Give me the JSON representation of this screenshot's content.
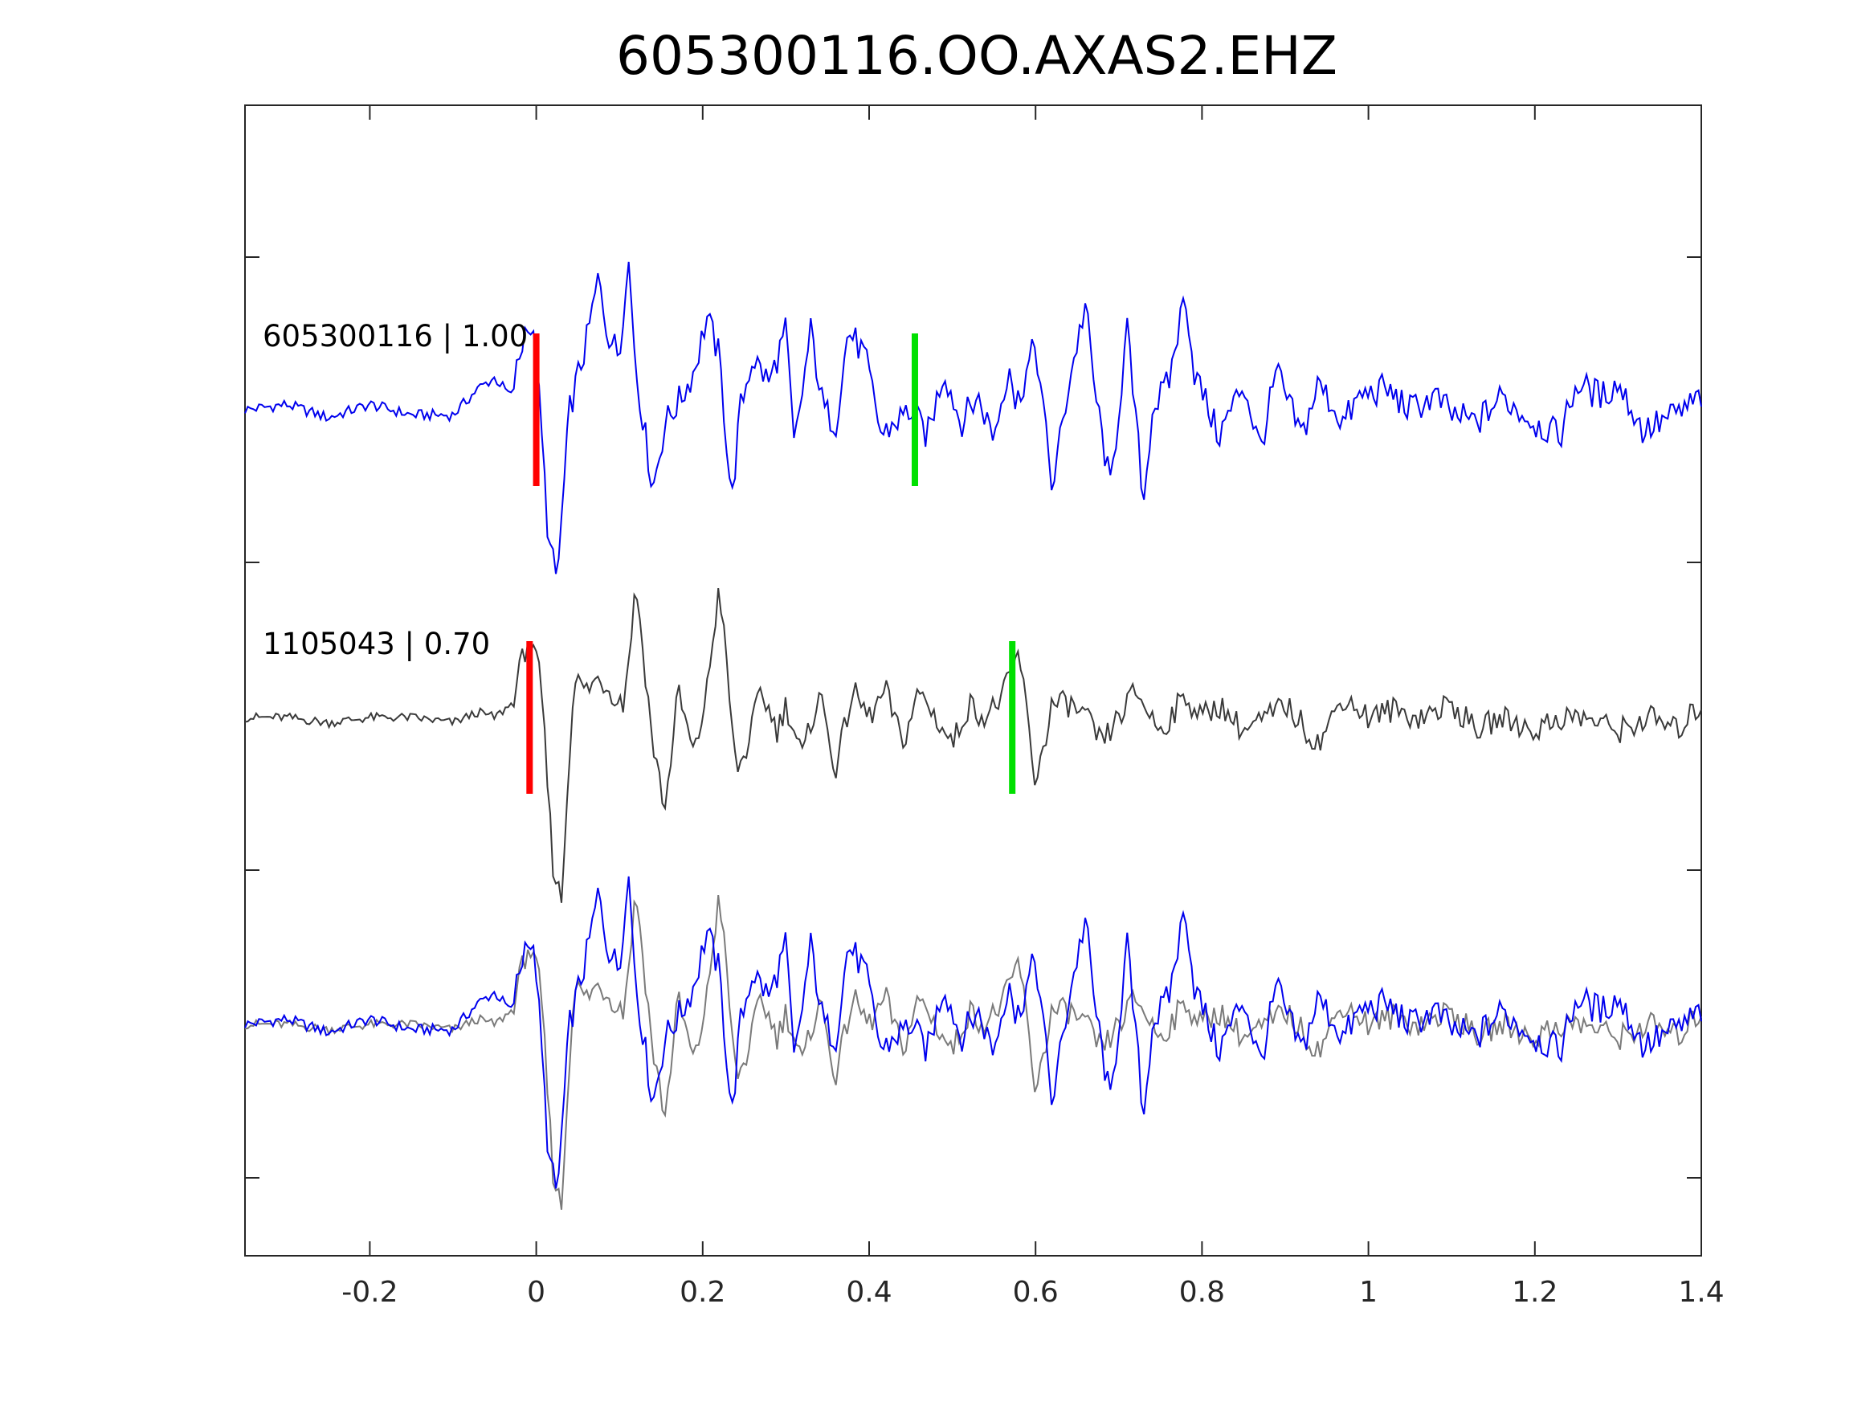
{
  "chart_data": {
    "type": "line",
    "title": "605300116.OO.AXAS2.EHZ",
    "xlabel": "",
    "ylabel": "",
    "xlim": [
      -0.35,
      1.4
    ],
    "xticks": [
      -0.2,
      0,
      0.2,
      0.4,
      0.6,
      0.8,
      1,
      1.2,
      1.4
    ],
    "xtick_labels": [
      "-0.2",
      "0",
      "0.2",
      "0.4",
      "0.6",
      "0.8",
      "1",
      "1.2",
      "1.4"
    ],
    "grid": false,
    "colors": {
      "master": "#0000ee",
      "reference": "#3a3a3a",
      "reference_overlay": "#7a7a7a",
      "p_pick": "#ff0000",
      "s_pick": "#00e000",
      "axes": "#262626"
    },
    "traces": [
      {
        "name": "605300116 | 1.00",
        "label": "605300116 | 1.00",
        "color_key": "master",
        "p_pick": 0.0,
        "s_pick": 0.455
      },
      {
        "name": "1105043 | 0.70",
        "label": "1105043 | 0.70",
        "color_key": "reference",
        "p_pick": -0.008,
        "s_pick": 0.572
      },
      {
        "name": "overlay",
        "label": "",
        "color_key": "master",
        "overlay": true
      }
    ],
    "master_waveform": {
      "x": [
        -0.35,
        -0.3,
        -0.25,
        -0.2,
        -0.15,
        -0.1,
        -0.07,
        -0.05,
        -0.03,
        -0.01,
        0.0,
        0.015,
        0.025,
        0.04,
        0.06,
        0.075,
        0.085,
        0.1,
        0.11,
        0.12,
        0.14,
        0.155,
        0.175,
        0.19,
        0.205,
        0.22,
        0.235,
        0.245,
        0.26,
        0.28,
        0.3,
        0.31,
        0.33,
        0.345,
        0.36,
        0.375,
        0.395,
        0.415,
        0.43,
        0.45,
        0.47,
        0.49,
        0.51,
        0.53,
        0.55,
        0.57,
        0.575,
        0.6,
        0.62,
        0.64,
        0.66,
        0.67,
        0.69,
        0.71,
        0.73,
        0.74,
        0.76,
        0.78,
        0.79,
        0.82,
        0.85,
        0.87,
        0.89,
        0.9,
        0.92,
        0.94,
        0.97,
        0.99,
        1.02,
        1.05,
        1.08,
        1.1,
        1.13,
        1.16,
        1.2,
        1.23,
        1.25,
        1.28,
        1.3,
        1.33,
        1.35,
        1.38,
        1.4
      ],
      "y": [
        0.0,
        0.02,
        -0.03,
        0.02,
        -0.02,
        -0.02,
        0.08,
        0.12,
        0.05,
        0.35,
        0.2,
        -0.5,
        -0.65,
        0.0,
        0.25,
        0.5,
        0.3,
        0.2,
        0.6,
        0.15,
        -0.3,
        -0.05,
        0.05,
        0.15,
        0.35,
        0.2,
        -0.35,
        0.0,
        0.2,
        0.1,
        0.3,
        -0.15,
        0.3,
        0.0,
        -0.05,
        0.3,
        0.2,
        -0.1,
        -0.05,
        0.0,
        -0.1,
        0.15,
        -0.05,
        0.05,
        -0.1,
        0.2,
        0.0,
        0.25,
        -0.3,
        0.1,
        0.4,
        0.1,
        -0.3,
        0.3,
        -0.35,
        0.0,
        0.1,
        0.45,
        0.15,
        -0.1,
        0.1,
        -0.15,
        0.15,
        0.05,
        -0.1,
        0.1,
        -0.05,
        0.05,
        0.08,
        0.0,
        0.05,
        -0.02,
        -0.05,
        0.05,
        -0.05,
        -0.1,
        0.1,
        0.05,
        0.1,
        -0.08,
        -0.05,
        0.0,
        0.05
      ]
    },
    "reference_waveform": {
      "x": [
        -0.35,
        -0.3,
        -0.25,
        -0.2,
        -0.15,
        -0.1,
        -0.07,
        -0.05,
        -0.03,
        -0.01,
        0.005,
        0.02,
        0.03,
        0.045,
        0.06,
        0.075,
        0.09,
        0.105,
        0.12,
        0.14,
        0.155,
        0.17,
        0.19,
        0.205,
        0.22,
        0.24,
        0.25,
        0.27,
        0.29,
        0.3,
        0.32,
        0.34,
        0.36,
        0.38,
        0.4,
        0.42,
        0.44,
        0.46,
        0.48,
        0.5,
        0.52,
        0.54,
        0.56,
        0.57,
        0.58,
        0.6,
        0.62,
        0.64,
        0.66,
        0.68,
        0.7,
        0.72,
        0.75,
        0.78,
        0.8,
        0.82,
        0.85,
        0.88,
        0.9,
        0.94,
        0.97,
        1.0,
        1.03,
        1.06,
        1.1,
        1.13,
        1.16,
        1.2,
        1.23,
        1.26,
        1.3,
        1.34,
        1.37,
        1.4
      ],
      "y": [
        0.0,
        0.0,
        -0.02,
        0.0,
        0.0,
        -0.02,
        0.02,
        0.0,
        0.05,
        0.3,
        0.15,
        -0.55,
        -0.7,
        0.15,
        0.1,
        0.15,
        0.1,
        0.05,
        0.5,
        -0.1,
        -0.35,
        0.1,
        -0.15,
        0.1,
        0.5,
        -0.2,
        -0.15,
        0.1,
        -0.05,
        0.05,
        -0.15,
        0.1,
        -0.2,
        0.1,
        0.0,
        0.1,
        -0.1,
        0.1,
        0.0,
        -0.1,
        0.05,
        0.0,
        0.08,
        0.15,
        0.25,
        -0.25,
        0.05,
        0.05,
        0.0,
        -0.1,
        0.0,
        0.1,
        -0.05,
        0.08,
        0.0,
        0.05,
        -0.05,
        0.0,
        0.05,
        -0.1,
        0.08,
        0.0,
        0.03,
        0.0,
        0.05,
        -0.05,
        0.0,
        -0.05,
        0.0,
        0.0,
        -0.05,
        0.0,
        -0.05,
        0.05
      ]
    }
  }
}
